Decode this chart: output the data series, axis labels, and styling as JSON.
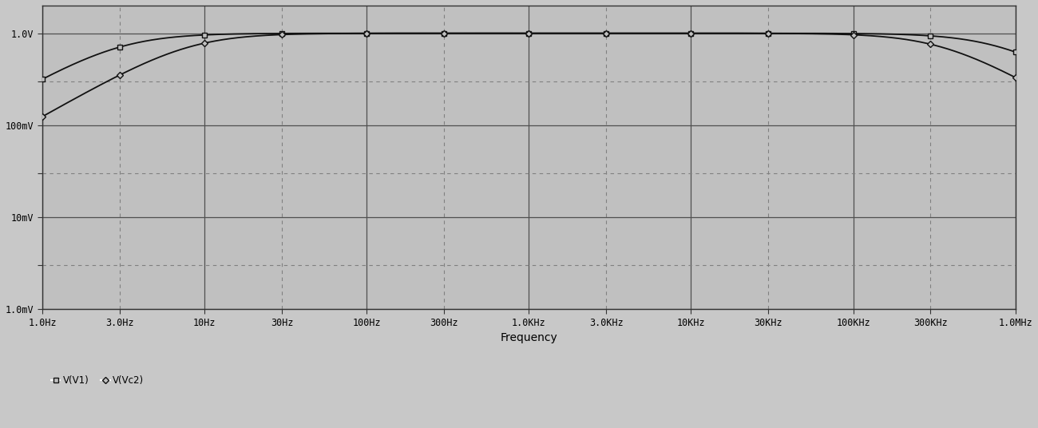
{
  "title": "",
  "xlabel": "Frequency",
  "ylabel": "",
  "freq_min": 1.0,
  "freq_max": 1000000.0,
  "y_min": 0.001,
  "y_max": 2.0,
  "background_color": "#c8c8c8",
  "plot_area_color": "#c0c0c0",
  "line_color": "#111111",
  "x_ticks": [
    1,
    3,
    10,
    30,
    100,
    300,
    1000,
    3000,
    10000,
    30000,
    100000,
    300000,
    1000000
  ],
  "x_tick_labels": [
    "1.0Hz",
    "3.0Hz",
    "10Hz",
    "30Hz",
    "100Hz",
    "300Hz",
    "1.0KHz",
    "3.0KHz",
    "10KHz",
    "30KHz",
    "100KHz",
    "300KHz",
    "1.0MHz"
  ],
  "y_ticks": [
    0.001,
    0.003,
    0.01,
    0.03,
    0.1,
    0.3,
    1.0
  ],
  "y_tick_labels": [
    "1.0mV",
    "",
    "10mV",
    "",
    "100mV",
    "",
    "1.0V"
  ],
  "legend_labels": [
    "V(V1)",
    "V(Vc2)"
  ],
  "v1_f_low": 3.0,
  "v1_f_high": 800000,
  "v1_peak": 1.0,
  "vc2_f_low": 8.0,
  "vc2_f_high": 350000,
  "vc2_peak": 1.0,
  "marker_freqs": [
    1.0,
    3.0,
    10.0,
    30.0,
    100.0,
    300.0,
    1000.0,
    3000.0,
    10000.0,
    30000.0,
    100000.0,
    300000.0,
    1000000.0
  ]
}
